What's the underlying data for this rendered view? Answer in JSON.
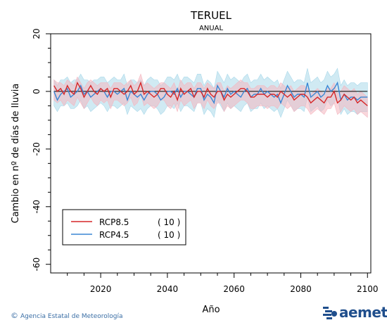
{
  "chart_data": {
    "type": "line",
    "title": "TERUEL",
    "subtitle": "ANUAL",
    "xlabel": "Año",
    "ylabel": "Cambio en nº de días de lluvia",
    "xlim": [
      2005,
      2101
    ],
    "ylim": [
      -63,
      20
    ],
    "xticks": [
      2020,
      2040,
      2060,
      2080,
      2100
    ],
    "yticks": [
      20,
      0,
      -20,
      -40,
      -60
    ],
    "legend_position": "bottom-left",
    "x": [
      2006,
      2007,
      2008,
      2009,
      2010,
      2011,
      2012,
      2013,
      2014,
      2015,
      2016,
      2017,
      2018,
      2019,
      2020,
      2021,
      2022,
      2023,
      2024,
      2025,
      2026,
      2027,
      2028,
      2029,
      2030,
      2031,
      2032,
      2033,
      2034,
      2035,
      2036,
      2037,
      2038,
      2039,
      2040,
      2041,
      2042,
      2043,
      2044,
      2045,
      2046,
      2047,
      2048,
      2049,
      2050,
      2051,
      2052,
      2053,
      2054,
      2055,
      2056,
      2057,
      2058,
      2059,
      2060,
      2061,
      2062,
      2063,
      2064,
      2065,
      2066,
      2067,
      2068,
      2069,
      2070,
      2071,
      2072,
      2073,
      2074,
      2075,
      2076,
      2077,
      2078,
      2079,
      2080,
      2081,
      2082,
      2083,
      2084,
      2085,
      2086,
      2087,
      2088,
      2089,
      2090,
      2091,
      2092,
      2093,
      2094,
      2095,
      2096,
      2097,
      2098,
      2099,
      2100
    ],
    "series": [
      {
        "name": "RCP8.5",
        "count": "( 10 )",
        "color": "#d62728",
        "band_color": "#f4b6c0",
        "values": [
          2,
          0,
          1,
          -1,
          2,
          0,
          -1,
          3,
          1,
          -2,
          0,
          2,
          0,
          -1,
          1,
          0,
          1,
          -2,
          1,
          1,
          0,
          -1,
          0,
          2,
          -1,
          0,
          3,
          -1,
          0,
          -1,
          -2,
          -1,
          1,
          1,
          -1,
          -2,
          0,
          -3,
          1,
          -1,
          0,
          1,
          -2,
          0,
          0,
          -2,
          1,
          -1,
          -2,
          0,
          0,
          -3,
          -1,
          -2,
          -1,
          0,
          1,
          1,
          0,
          -2,
          -2,
          -1,
          -1,
          -1,
          -2,
          -1,
          -1,
          -2,
          0,
          -1,
          -2,
          -1,
          -3,
          -2,
          -1,
          -1,
          -2,
          -4,
          -3,
          -2,
          -3,
          -4,
          -2,
          -2,
          0,
          -4,
          -3,
          -1,
          -2,
          -3,
          -2,
          -4,
          -3,
          -4,
          -5
        ],
        "upper": [
          4,
          3,
          3,
          2,
          4,
          3,
          2,
          5,
          3,
          1,
          3,
          4,
          3,
          2,
          3,
          3,
          3,
          1,
          3,
          3,
          3,
          2,
          3,
          4,
          2,
          3,
          6,
          2,
          3,
          2,
          1,
          2,
          3,
          3,
          2,
          1,
          3,
          0,
          4,
          2,
          3,
          3,
          1,
          3,
          3,
          1,
          3,
          2,
          1,
          3,
          3,
          0,
          2,
          1,
          2,
          3,
          4,
          3,
          3,
          1,
          1,
          2,
          2,
          2,
          1,
          2,
          2,
          1,
          3,
          2,
          1,
          2,
          0,
          1,
          2,
          2,
          1,
          -1,
          0,
          1,
          0,
          -1,
          1,
          1,
          3,
          -1,
          0,
          2,
          1,
          0,
          1,
          -1,
          0,
          -1,
          -2
        ],
        "lower": [
          -3,
          -4,
          -3,
          -5,
          -3,
          -4,
          -5,
          -2,
          -4,
          -6,
          -4,
          -2,
          -4,
          -5,
          -3,
          -4,
          -3,
          -6,
          -3,
          -3,
          -4,
          -5,
          -4,
          -2,
          -5,
          -4,
          -1,
          -5,
          -4,
          -5,
          -6,
          -5,
          -3,
          -3,
          -5,
          -6,
          -4,
          -7,
          -3,
          -5,
          -4,
          -3,
          -6,
          -4,
          -4,
          -6,
          -3,
          -5,
          -6,
          -4,
          -4,
          -7,
          -5,
          -6,
          -5,
          -4,
          -3,
          -3,
          -4,
          -6,
          -6,
          -5,
          -5,
          -5,
          -6,
          -5,
          -5,
          -6,
          -4,
          -5,
          -6,
          -5,
          -7,
          -6,
          -5,
          -5,
          -6,
          -8,
          -7,
          -6,
          -7,
          -8,
          -6,
          -6,
          -4,
          -8,
          -7,
          -5,
          -6,
          -7,
          -6,
          -8,
          -7,
          -8,
          -9
        ]
      },
      {
        "name": "RCP4.5",
        "count": "( 10 )",
        "color": "#3a86d4",
        "band_color": "#a9d8ea",
        "values": [
          0,
          -3,
          -1,
          0,
          1,
          -2,
          -1,
          0,
          2,
          -1,
          0,
          -2,
          -1,
          0,
          1,
          0,
          -2,
          0,
          0,
          -1,
          0,
          1,
          -3,
          0,
          -1,
          -2,
          -1,
          -3,
          -1,
          0,
          0,
          -1,
          -3,
          -2,
          0,
          0,
          -1,
          1,
          -2,
          0,
          0,
          -1,
          -2,
          1,
          1,
          -3,
          -1,
          -2,
          -4,
          2,
          0,
          -2,
          1,
          -1,
          0,
          -1,
          -2,
          0,
          1,
          -2,
          -1,
          -1,
          1,
          -1,
          0,
          -1,
          -2,
          -1,
          -4,
          -1,
          2,
          0,
          -2,
          -1,
          -1,
          -2,
          3,
          -2,
          -1,
          0,
          -2,
          -1,
          2,
          0,
          1,
          3,
          -3,
          -1,
          -3,
          -2,
          -2,
          -3,
          -2,
          -2,
          -2
        ],
        "upper": [
          4,
          2,
          4,
          4,
          5,
          3,
          4,
          4,
          6,
          4,
          4,
          3,
          4,
          4,
          5,
          5,
          3,
          4,
          5,
          4,
          4,
          6,
          2,
          4,
          4,
          3,
          4,
          2,
          4,
          5,
          4,
          4,
          2,
          3,
          5,
          5,
          4,
          6,
          3,
          5,
          5,
          4,
          3,
          6,
          6,
          2,
          4,
          3,
          1,
          7,
          5,
          3,
          6,
          4,
          5,
          4,
          3,
          5,
          6,
          3,
          4,
          4,
          6,
          4,
          5,
          4,
          3,
          4,
          1,
          4,
          7,
          5,
          3,
          4,
          4,
          3,
          8,
          3,
          4,
          5,
          3,
          4,
          7,
          5,
          6,
          8,
          2,
          4,
          2,
          3,
          3,
          2,
          3,
          3,
          3
        ],
        "lower": [
          -5,
          -7,
          -5,
          -5,
          -4,
          -6,
          -6,
          -5,
          -3,
          -6,
          -5,
          -7,
          -6,
          -5,
          -4,
          -5,
          -7,
          -5,
          -5,
          -6,
          -5,
          -4,
          -8,
          -5,
          -6,
          -7,
          -6,
          -8,
          -6,
          -5,
          -5,
          -6,
          -8,
          -7,
          -5,
          -5,
          -6,
          -4,
          -7,
          -5,
          -5,
          -6,
          -7,
          -4,
          -4,
          -8,
          -6,
          -7,
          -9,
          -3,
          -5,
          -7,
          -4,
          -6,
          -5,
          -6,
          -7,
          -5,
          -4,
          -7,
          -6,
          -6,
          -4,
          -6,
          -5,
          -6,
          -7,
          -6,
          -9,
          -6,
          -3,
          -5,
          -7,
          -6,
          -6,
          -7,
          -2,
          -7,
          -6,
          -5,
          -7,
          -6,
          -3,
          -5,
          -4,
          -2,
          -8,
          -6,
          -8,
          -7,
          -7,
          -8,
          -7,
          -7,
          -7
        ]
      }
    ]
  },
  "footer": {
    "copyright_symbol": "©",
    "agency": "Agencia Estatal de Meteorología",
    "logo_text": "aemet"
  }
}
